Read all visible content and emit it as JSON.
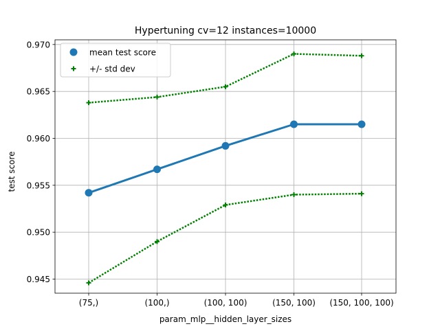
{
  "chart_data": {
    "type": "line",
    "title": "Hypertuning cv=12 instances=10000",
    "xlabel": "param_mlp__hidden_layer_sizes",
    "ylabel": "test score",
    "categories": [
      "(75,)",
      "(100,)",
      "(100, 100)",
      "(150, 100)",
      "(150, 100, 100)"
    ],
    "ylim": [
      0.9435,
      0.9705
    ],
    "yticks": [
      0.945,
      0.95,
      0.955,
      0.96,
      0.965,
      0.97
    ],
    "ytick_labels": [
      "0.945",
      "0.950",
      "0.955",
      "0.960",
      "0.965",
      "0.970"
    ],
    "grid": true,
    "legend_position": "top-left",
    "series": [
      {
        "name": "mean test score",
        "role": "mean",
        "color": "#1f77b4",
        "marker": "circle",
        "line_style": "solid",
        "values": [
          0.9542,
          0.9567,
          0.9592,
          0.9615,
          0.9615
        ]
      },
      {
        "name": "+/- std dev",
        "role": "upper",
        "color": "#008000",
        "marker": "plus",
        "line_style": "dotted",
        "values": [
          0.9638,
          0.9644,
          0.9655,
          0.969,
          0.9688
        ]
      },
      {
        "name": "",
        "role": "lower",
        "color": "#008000",
        "marker": "plus",
        "line_style": "dotted",
        "values": [
          0.9446,
          0.949,
          0.9529,
          0.954,
          0.9541
        ]
      }
    ]
  }
}
